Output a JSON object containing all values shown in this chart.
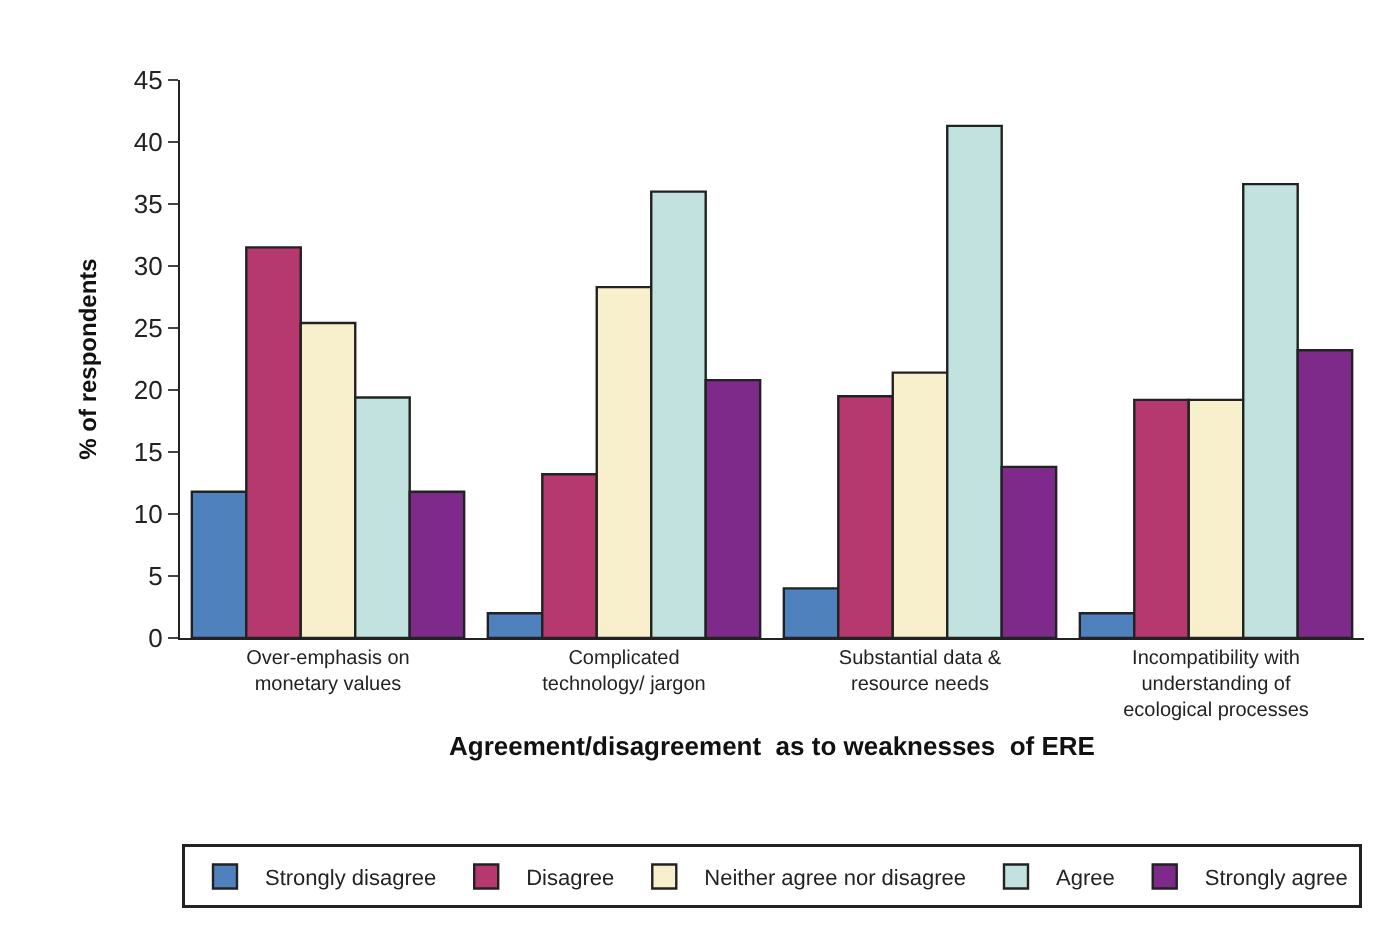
{
  "chart_data": {
    "type": "bar",
    "categories": [
      "Over-emphasis on monetary values",
      "Complicated technology/ jargon",
      "Substantial data & resource needs",
      "Incompatibility with understanding of ecological processes"
    ],
    "xlabel": "Agreement/disagreement  as to weaknesses  of ERE",
    "ylabel": "% of respondents",
    "ylim": [
      0,
      45
    ],
    "yticks": [
      0,
      5,
      10,
      15,
      20,
      25,
      30,
      35,
      40,
      45
    ],
    "legend": "bottom",
    "series": [
      {
        "name": "Strongly disagree",
        "color": "#4f81bd",
        "values": [
          11.8,
          2,
          4,
          2
        ]
      },
      {
        "name": "Disagree",
        "color": "#b5396e",
        "values": [
          31.5,
          13.2,
          19.5,
          19.2
        ]
      },
      {
        "name": "Neither agree nor disagree",
        "color": "#f8f0cc",
        "values": [
          25.4,
          28.3,
          21.4,
          19.2
        ]
      },
      {
        "name": "Agree",
        "color": "#c2e2df",
        "values": [
          19.4,
          36,
          41.3,
          36.6
        ]
      },
      {
        "name": "Strongly agree",
        "color": "#7d2a8a",
        "values": [
          11.8,
          20.8,
          13.8,
          23.2
        ]
      }
    ]
  }
}
